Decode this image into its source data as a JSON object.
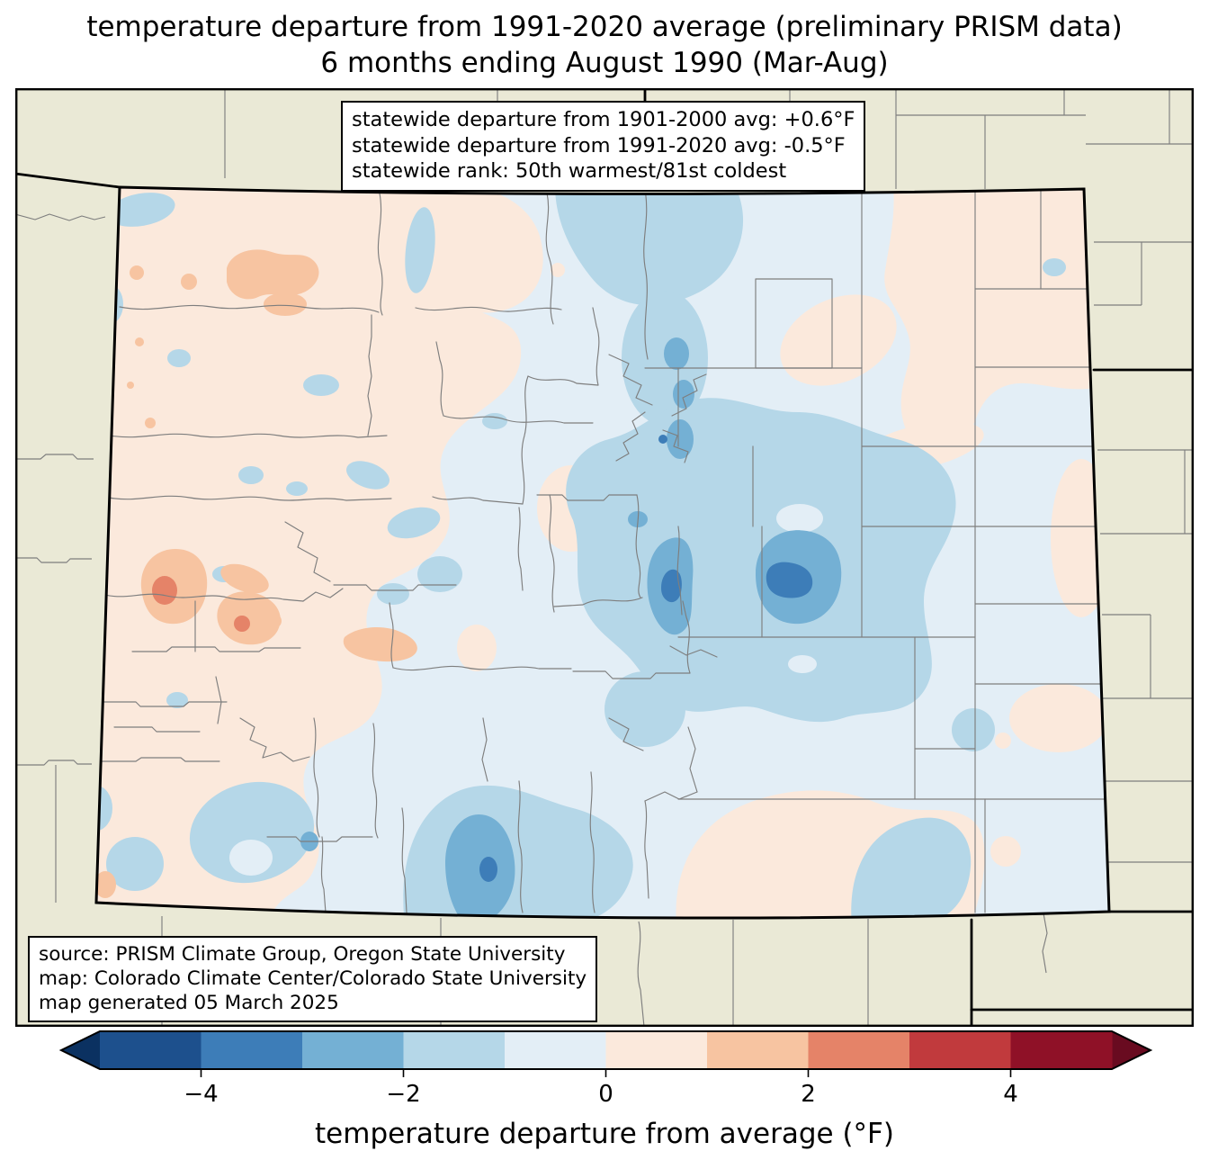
{
  "title": {
    "line1": "temperature departure from 1991-2020 average (preliminary PRISM data)",
    "line2": "6 months ending August 1990 (Mar-Aug)"
  },
  "stats_box": {
    "line1": "statewide departure from 1901-2000 avg: +0.6°F",
    "line2": "statewide departure from 1991-2020 avg: -0.5°F",
    "line3": "statewide rank: 50th warmest/81st coldest"
  },
  "source_box": {
    "line1": "source: PRISM Climate Group, Oregon State University",
    "line2": "map: Colorado Climate Center/Colorado State University",
    "line3": "map generated 05 March 2025"
  },
  "colorbar": {
    "label": "temperature departure from average (°F)",
    "tick_labels": [
      "−4",
      "−2",
      "0",
      "2",
      "4"
    ],
    "tick_values": [
      -4,
      -2,
      0,
      2,
      4
    ],
    "vmin": -5,
    "vmax": 5,
    "segment_colors": [
      "#1d508d",
      "#3d7db8",
      "#74b0d4",
      "#b5d7e8",
      "#e3eef6",
      "#fbe9dc",
      "#f7c4a1",
      "#e58368",
      "#c13a3d",
      "#8f1127"
    ],
    "under_arrow_color": "#0b3161",
    "over_arrow_color": "#690b20"
  },
  "map": {
    "region": "Colorado",
    "background_color": "#eae9d6",
    "county_line_color": "#7e7e7e",
    "state_border_color": "#000000"
  }
}
